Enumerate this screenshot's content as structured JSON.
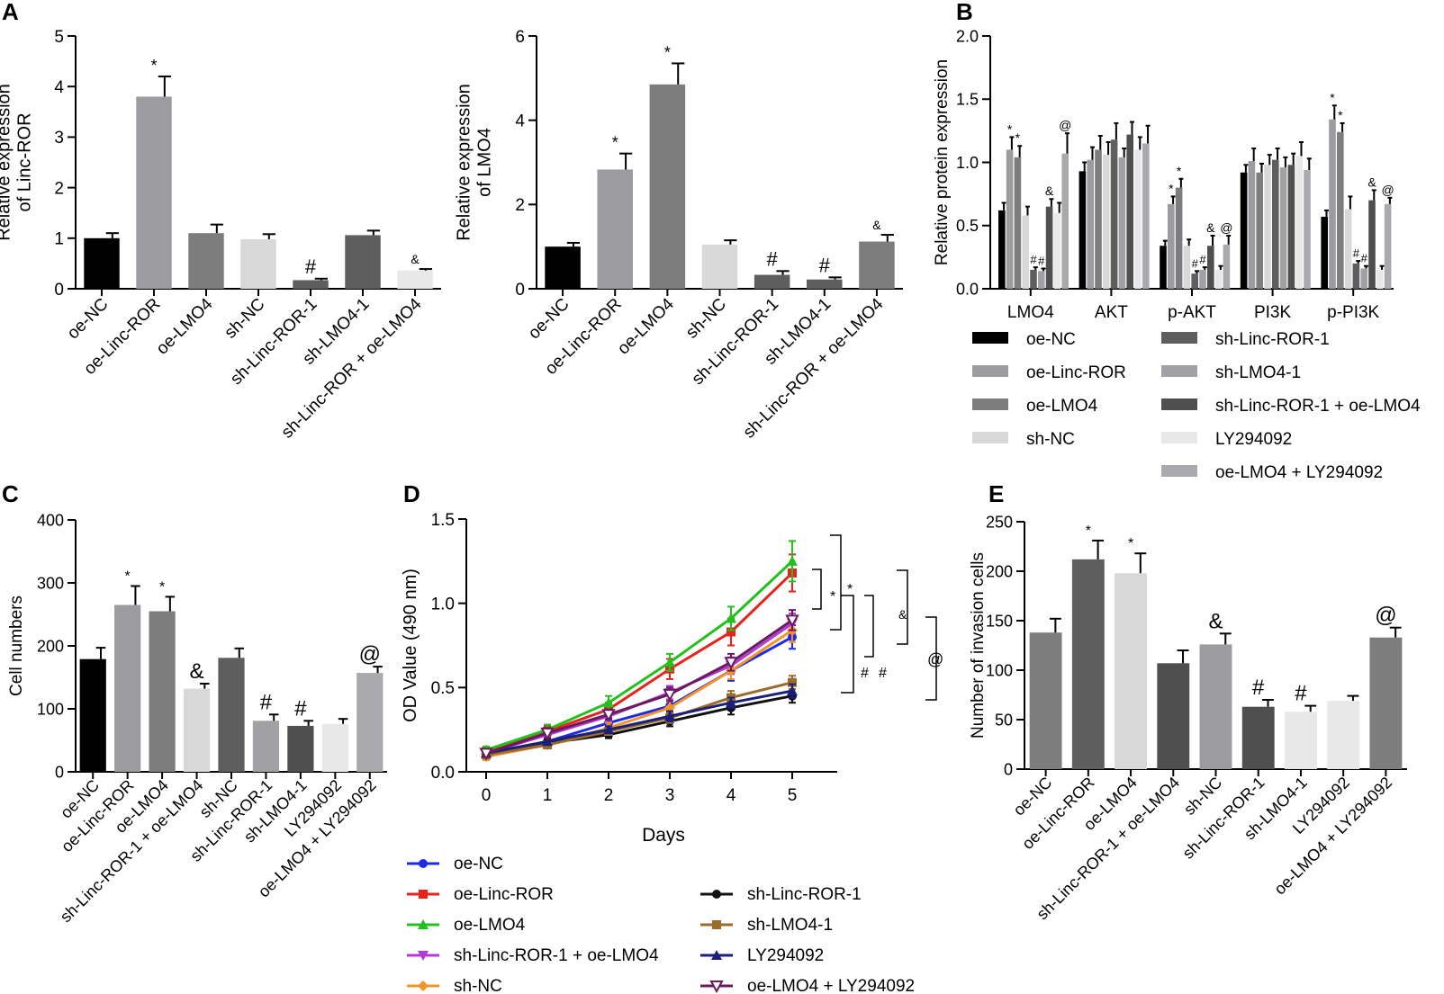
{
  "colors": {
    "black": "#000000",
    "g1": "#9b9ba0",
    "g2": "#7d7d7d",
    "g3": "#d8d8d8",
    "g4": "#5e5e5e",
    "g5": "#a0a0a5",
    "g6": "#4f4f4f",
    "g7": "#e8e8e8",
    "g8": "#a9a9ae",
    "line_oe_nc": "#1f2be0",
    "line_oe_linc": "#e8231c",
    "line_oe_lmo4": "#22c11e",
    "line_sh_linc_lmo4": "#b43ad8",
    "line_sh_nc": "#f2942b",
    "line_sh_linc": "#111111",
    "line_sh_lmo4": "#9b6b2a",
    "line_ly": "#1b1f7a",
    "line_oe_lmo4_ly": "#6a1b5e"
  },
  "panel_labels": {
    "a": "A",
    "b": "B",
    "c": "C",
    "d": "D",
    "e": "E"
  },
  "chart_data": [
    {
      "id": "A1",
      "type": "bar",
      "ylabel_lines": [
        "Relative expression",
        "of Linc-ROR"
      ],
      "ylim": [
        0,
        5
      ],
      "yticks": [
        0,
        1,
        2,
        3,
        4,
        5
      ],
      "categories": [
        "oe-NC",
        "oe-Linc-ROR",
        "oe-LMO4",
        "sh-NC",
        "sh-Linc-ROR-1",
        "sh-LMO4-1",
        "sh-Linc-ROR + oe-LMO4"
      ],
      "values": [
        1.0,
        3.8,
        1.1,
        0.98,
        0.17,
        1.06,
        0.36
      ],
      "errors": [
        0.1,
        0.4,
        0.17,
        0.1,
        0.03,
        0.09,
        0.03
      ],
      "marks": [
        "",
        "*",
        "",
        "",
        "#",
        "",
        "&"
      ],
      "colors": [
        "black",
        "g1",
        "g2",
        "g3",
        "g4",
        "g4",
        "g7"
      ]
    },
    {
      "id": "A2",
      "type": "bar",
      "ylabel_lines": [
        "Relative expression",
        "of LMO4"
      ],
      "ylim": [
        0,
        6
      ],
      "yticks": [
        0,
        2,
        4,
        6
      ],
      "categories": [
        "oe-NC",
        "oe-Linc-ROR",
        "oe-LMO4",
        "sh-NC",
        "sh-Linc-ROR-1",
        "sh-LMO4-1",
        "sh-Linc-ROR + oe-LMO4"
      ],
      "values": [
        1.0,
        2.83,
        4.85,
        1.05,
        0.33,
        0.22,
        1.12
      ],
      "errors": [
        0.09,
        0.38,
        0.5,
        0.1,
        0.09,
        0.05,
        0.16
      ],
      "marks": [
        "",
        "*",
        "*",
        "",
        "#",
        "#",
        "&"
      ],
      "colors": [
        "black",
        "g1",
        "g2",
        "g3",
        "g4",
        "g4",
        "g2"
      ]
    },
    {
      "id": "B",
      "type": "grouped-bar",
      "ylabel_lines": [
        "Relative  protein expression"
      ],
      "ylim": [
        0,
        2.0
      ],
      "yticks": [
        0.0,
        0.5,
        1.0,
        1.5,
        2.0
      ],
      "ytick_labels": [
        "0.0",
        "0.5",
        "1.0",
        "1.5",
        "2.0"
      ],
      "categories": [
        "LMO4",
        "AKT",
        "p-AKT",
        "PI3K",
        "p-PI3K"
      ],
      "series": [
        {
          "name": "oe-NC",
          "color": "black",
          "values": [
            0.62,
            0.93,
            0.34,
            0.92,
            0.57
          ],
          "errors": [
            0.06,
            0.07,
            0.04,
            0.06,
            0.05
          ],
          "marks": [
            "",
            "",
            "",
            "",
            ""
          ]
        },
        {
          "name": "oe-Linc-ROR",
          "color": "g1",
          "values": [
            1.1,
            1.02,
            0.67,
            1.01,
            1.34
          ],
          "errors": [
            0.1,
            0.1,
            0.06,
            0.1,
            0.11
          ],
          "marks": [
            "*",
            "",
            "*",
            "",
            "*"
          ]
        },
        {
          "name": "oe-LMO4",
          "color": "g2",
          "values": [
            1.04,
            1.1,
            0.8,
            0.92,
            1.24
          ],
          "errors": [
            0.09,
            0.11,
            0.07,
            0.07,
            0.07
          ],
          "marks": [
            "*",
            "",
            "*",
            "",
            "*"
          ]
        },
        {
          "name": "sh-NC",
          "color": "g3",
          "values": [
            0.58,
            1.06,
            0.34,
            0.98,
            0.63
          ],
          "errors": [
            0.07,
            0.1,
            0.05,
            0.08,
            0.1
          ],
          "marks": [
            "",
            "",
            "",
            "",
            ""
          ]
        },
        {
          "name": "sh-Linc-ROR-1",
          "color": "g4",
          "values": [
            0.15,
            1.18,
            0.12,
            1.02,
            0.2
          ],
          "errors": [
            0.02,
            0.13,
            0.02,
            0.09,
            0.02
          ],
          "marks": [
            "#",
            "",
            "#",
            "",
            "#"
          ]
        },
        {
          "name": "sh-LMO4-1",
          "color": "g5",
          "values": [
            0.14,
            1.04,
            0.15,
            0.96,
            0.16
          ],
          "errors": [
            0.02,
            0.07,
            0.02,
            0.08,
            0.02
          ],
          "marks": [
            "#",
            "",
            "#",
            "",
            "#"
          ]
        },
        {
          "name": "sh-Linc-ROR-1 + oe-LMO4",
          "color": "g6",
          "values": [
            0.65,
            1.22,
            0.34,
            0.98,
            0.7
          ],
          "errors": [
            0.06,
            0.1,
            0.08,
            0.09,
            0.08
          ],
          "marks": [
            "&",
            "",
            "&",
            "",
            "&"
          ]
        },
        {
          "name": "LY294092",
          "color": "g7",
          "values": [
            0.6,
            1.1,
            0.15,
            1.05,
            0.15
          ],
          "errors": [
            0.08,
            0.1,
            0.03,
            0.11,
            0.03
          ],
          "marks": [
            "",
            "",
            "",
            "",
            ""
          ]
        },
        {
          "name": "oe-LMO4 + LY294092",
          "color": "g8",
          "values": [
            1.07,
            1.15,
            0.35,
            0.94,
            0.67
          ],
          "errors": [
            0.16,
            0.14,
            0.07,
            0.09,
            0.05
          ],
          "marks": [
            "@",
            "",
            "@",
            "",
            "@"
          ]
        }
      ],
      "legend": [
        "oe-NC",
        "oe-Linc-ROR",
        "oe-LMO4",
        "sh-NC",
        "sh-Linc-ROR-1",
        "sh-LMO4-1",
        "sh-Linc-ROR-1 + oe-LMO4",
        "LY294092",
        "oe-LMO4 + LY294092"
      ]
    },
    {
      "id": "C",
      "type": "bar",
      "ylabel_lines": [
        "Cell numbers"
      ],
      "ylim": [
        0,
        400
      ],
      "yticks": [
        0,
        100,
        200,
        300,
        400
      ],
      "categories": [
        "oe-NC",
        "oe-Linc-ROR",
        "oe-LMO4",
        "sh-Linc-ROR-1 + oe-LMO4",
        "sh-NC",
        "sh-Linc-ROR-1",
        "sh-LMO4-1",
        "LY294092",
        "oe-LMO4 + LY294092"
      ],
      "values": [
        179,
        265,
        255,
        132,
        181,
        81,
        73,
        76,
        157
      ],
      "errors": [
        18,
        30,
        23,
        8,
        15,
        10,
        8,
        8,
        10
      ],
      "marks": [
        "",
        "*",
        "*",
        "&",
        "",
        "#",
        "#",
        "",
        "@"
      ],
      "colors": [
        "black",
        "g1",
        "g2",
        "g3",
        "g4",
        "g5",
        "g6",
        "g7",
        "g8"
      ]
    },
    {
      "id": "D",
      "type": "line",
      "xlabel": "Days",
      "ylabel_lines": [
        "OD Value (490 nm)"
      ],
      "ylim": [
        0,
        1.5
      ],
      "yticks": [
        0.0,
        0.5,
        1.0,
        1.5
      ],
      "ytick_labels": [
        "0.0",
        "0.5",
        "1.0",
        "1.5"
      ],
      "x": [
        0,
        1,
        2,
        3,
        4,
        5
      ],
      "series": [
        {
          "name": "oe-NC",
          "color": "line_oe_nc",
          "marker": "circle",
          "values": [
            0.1,
            0.18,
            0.29,
            0.39,
            0.6,
            0.8
          ],
          "errors": [
            0.02,
            0.03,
            0.03,
            0.04,
            0.06,
            0.07
          ]
        },
        {
          "name": "oe-Linc-ROR",
          "color": "line_oe_linc",
          "marker": "square",
          "values": [
            0.12,
            0.24,
            0.37,
            0.61,
            0.83,
            1.18
          ],
          "errors": [
            0.02,
            0.03,
            0.04,
            0.06,
            0.08,
            0.11
          ]
        },
        {
          "name": "oe-LMO4",
          "color": "line_oe_lmo4",
          "marker": "triangle",
          "values": [
            0.13,
            0.25,
            0.41,
            0.65,
            0.91,
            1.25
          ],
          "errors": [
            0.02,
            0.03,
            0.04,
            0.05,
            0.07,
            0.12
          ]
        },
        {
          "name": "sh-Linc-ROR-1 + oe-LMO4",
          "color": "line_sh_linc_lmo4",
          "marker": "tri-down",
          "values": [
            0.11,
            0.22,
            0.33,
            0.47,
            0.63,
            0.88
          ],
          "errors": [
            0.02,
            0.03,
            0.03,
            0.04,
            0.05,
            0.06
          ]
        },
        {
          "name": "sh-NC",
          "color": "line_sh_nc",
          "marker": "diamond",
          "values": [
            0.09,
            0.16,
            0.26,
            0.38,
            0.6,
            0.84
          ],
          "errors": [
            0.02,
            0.02,
            0.03,
            0.04,
            0.05,
            0.07
          ]
        },
        {
          "name": "sh-Linc-ROR-1",
          "color": "line_sh_linc",
          "marker": "circle",
          "values": [
            0.1,
            0.17,
            0.22,
            0.3,
            0.38,
            0.45
          ],
          "errors": [
            0.02,
            0.02,
            0.02,
            0.03,
            0.04,
            0.04
          ]
        },
        {
          "name": "sh-LMO4-1",
          "color": "line_sh_lmo4",
          "marker": "square",
          "values": [
            0.1,
            0.16,
            0.24,
            0.32,
            0.44,
            0.53
          ],
          "errors": [
            0.02,
            0.02,
            0.02,
            0.03,
            0.04,
            0.04
          ]
        },
        {
          "name": "LY294092",
          "color": "line_ly",
          "marker": "triangle",
          "values": [
            0.11,
            0.18,
            0.25,
            0.33,
            0.41,
            0.48
          ],
          "errors": [
            0.02,
            0.02,
            0.02,
            0.03,
            0.03,
            0.04
          ]
        },
        {
          "name": "oe-LMO4 + LY294092",
          "color": "line_oe_lmo4_ly",
          "marker": "tri-down-open",
          "values": [
            0.11,
            0.23,
            0.34,
            0.46,
            0.65,
            0.9
          ],
          "errors": [
            0.02,
            0.03,
            0.03,
            0.04,
            0.05,
            0.06
          ]
        }
      ],
      "significance": [
        "*",
        "*",
        "#",
        "#",
        "&",
        "@"
      ]
    },
    {
      "id": "E",
      "type": "bar",
      "ylabel_lines": [
        "Number of invasion cells"
      ],
      "ylim": [
        0,
        250
      ],
      "yticks": [
        0,
        50,
        100,
        150,
        200,
        250
      ],
      "categories": [
        "oe-NC",
        "oe-Linc-ROR",
        "oe-LMO4",
        "sh-Linc-ROR-1 + oe-LMO4",
        "sh-NC",
        "sh-Linc-ROR-1",
        "sh-LMO4-1",
        "LY294092",
        "oe-LMO4 + LY294092"
      ],
      "values": [
        138,
        212,
        198,
        107,
        126,
        63,
        58,
        69,
        133
      ],
      "errors": [
        14,
        19,
        20,
        13,
        11,
        7,
        6,
        5,
        10
      ],
      "marks": [
        "",
        "*",
        "*",
        "",
        "&",
        "#",
        "#",
        "",
        "@"
      ],
      "colors": [
        "g2",
        "g4",
        "g3",
        "g6",
        "g1",
        "g6",
        "g7",
        "g7",
        "g2"
      ]
    }
  ]
}
